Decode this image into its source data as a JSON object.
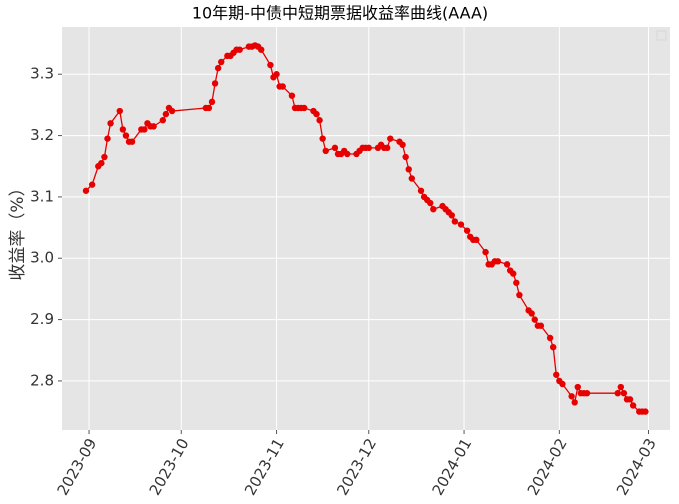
{
  "chart_data": {
    "type": "line",
    "title": "10年期-中债中短期票据收益率曲线(AAA)",
    "ylabel": "收益率（%）",
    "color": "#e60000",
    "grid": true,
    "x": [
      -1,
      1,
      3,
      4,
      5,
      6,
      7,
      10,
      11,
      12,
      13,
      14,
      17,
      18,
      19,
      20,
      21,
      24,
      25,
      26,
      27,
      38,
      39,
      40,
      41,
      42,
      43,
      45,
      46,
      47,
      48,
      49,
      52,
      53,
      54,
      55,
      56,
      59,
      60,
      61,
      62,
      63,
      66,
      67,
      68,
      69,
      70,
      73,
      74,
      75,
      76,
      77,
      80,
      81,
      82,
      83,
      84,
      87,
      88,
      89,
      90,
      91,
      94,
      95,
      96,
      97,
      98,
      101,
      102,
      103,
      104,
      105,
      108,
      109,
      110,
      111,
      112,
      115,
      116,
      117,
      118,
      119,
      121,
      123,
      124,
      125,
      126,
      129,
      130,
      131,
      132,
      133,
      136,
      137,
      138,
      139,
      140,
      143,
      144,
      145,
      146,
      147,
      150,
      151,
      152,
      153,
      154,
      157,
      158,
      159,
      160,
      161,
      162,
      172,
      173,
      174,
      175,
      176,
      177,
      179,
      180,
      181
    ],
    "values": [
      3.11,
      3.12,
      3.15,
      3.155,
      3.165,
      3.195,
      3.22,
      3.24,
      3.21,
      3.2,
      3.19,
      3.19,
      3.21,
      3.21,
      3.22,
      3.215,
      3.215,
      3.225,
      3.235,
      3.245,
      3.24,
      3.245,
      3.245,
      3.255,
      3.285,
      3.31,
      3.32,
      3.33,
      3.33,
      3.335,
      3.34,
      3.34,
      3.345,
      3.345,
      3.347,
      3.345,
      3.34,
      3.315,
      3.295,
      3.3,
      3.28,
      3.28,
      3.265,
      3.245,
      3.245,
      3.245,
      3.245,
      3.24,
      3.235,
      3.225,
      3.195,
      3.175,
      3.18,
      3.17,
      3.17,
      3.175,
      3.17,
      3.17,
      3.175,
      3.18,
      3.18,
      3.18,
      3.18,
      3.185,
      3.18,
      3.18,
      3.195,
      3.19,
      3.185,
      3.165,
      3.145,
      3.13,
      3.11,
      3.1,
      3.095,
      3.09,
      3.08,
      3.085,
      3.08,
      3.075,
      3.07,
      3.06,
      3.055,
      3.045,
      3.035,
      3.03,
      3.03,
      3.01,
      2.99,
      2.99,
      2.995,
      2.995,
      2.99,
      2.98,
      2.975,
      2.96,
      2.94,
      2.915,
      2.91,
      2.9,
      2.89,
      2.89,
      2.87,
      2.855,
      2.81,
      2.8,
      2.795,
      2.775,
      2.765,
      2.79,
      2.78,
      2.78,
      2.78,
      2.78,
      2.79,
      2.78,
      2.77,
      2.77,
      2.76,
      2.75,
      2.75,
      2.75
    ],
    "xlim": [
      -8.8,
      189
    ],
    "xticks": [
      {
        "value": 0,
        "label": "2023-09"
      },
      {
        "value": 30,
        "label": "2023-10"
      },
      {
        "value": 61,
        "label": "2023-11"
      },
      {
        "value": 91,
        "label": "2023-12"
      },
      {
        "value": 122,
        "label": "2024-01"
      },
      {
        "value": 153,
        "label": "2024-02"
      },
      {
        "value": 182,
        "label": "2024-03"
      }
    ],
    "ylim": [
      2.72,
      3.377
    ],
    "yticks": [
      2.8,
      2.9,
      {
        "value": 3.0,
        "label": "3.0"
      },
      3.1,
      3.2,
      3.3
    ]
  }
}
